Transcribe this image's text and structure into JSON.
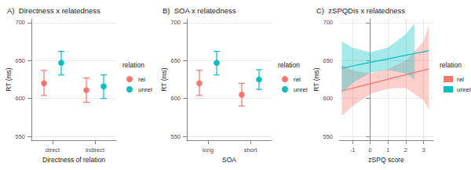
{
  "chart_data": [
    {
      "type": "point",
      "tag": "A)",
      "title": "Directness x relatedness",
      "x_label": "Directness of relation",
      "y_label": "RT (ms)",
      "categories": [
        "direct",
        "indirect"
      ],
      "legend_title": "relation",
      "legend": "right",
      "ylim": [
        545,
        705
      ],
      "yticks": [
        550,
        600,
        650,
        700
      ],
      "grid": true,
      "series": [
        {
          "name": "rel",
          "color": "#F8766D",
          "values": [
            620,
            611
          ],
          "lower": [
            604,
            595
          ],
          "upper": [
            637,
            627
          ]
        },
        {
          "name": "unrel",
          "color": "#00BFC4",
          "values": [
            647,
            616
          ],
          "lower": [
            631,
            600
          ],
          "upper": [
            662,
            631
          ]
        }
      ]
    },
    {
      "type": "point",
      "tag": "B)",
      "title": "SOA x relatedness",
      "x_label": "SOA",
      "y_label": "RT (ms)",
      "categories": [
        "long",
        "short"
      ],
      "legend_title": "relation",
      "legend": "right",
      "ylim": [
        545,
        705
      ],
      "yticks": [
        550,
        600,
        650,
        700
      ],
      "grid": true,
      "series": [
        {
          "name": "rel",
          "color": "#F8766D",
          "values": [
            620,
            605
          ],
          "lower": [
            604,
            590
          ],
          "upper": [
            637,
            620
          ]
        },
        {
          "name": "unrel",
          "color": "#00BFC4",
          "values": [
            647,
            625
          ],
          "lower": [
            631,
            612
          ],
          "upper": [
            662,
            638
          ]
        }
      ]
    },
    {
      "type": "line",
      "tag": "C)",
      "title": "zSPQDis x relatedness",
      "x_label": "zSPQ score",
      "y_label": "RT (ms)",
      "legend_title": "relation",
      "legend": "right",
      "xlim": [
        -1.75,
        3.55
      ],
      "xticks": [
        -1,
        0,
        1,
        2,
        3
      ],
      "ylim": [
        545,
        705
      ],
      "yticks": [
        550,
        600,
        650,
        700
      ],
      "grid": true,
      "series": [
        {
          "name": "rel",
          "color": "#F8766D",
          "x": [
            -1.6,
            -1,
            0,
            1,
            2,
            3,
            3.3
          ],
          "values": [
            610,
            613.6,
            619.5,
            625.4,
            631.3,
            637.2,
            639
          ],
          "lower": [
            577,
            590,
            606,
            613,
            614,
            598,
            585
          ],
          "upper": [
            644,
            637,
            633,
            639,
            650,
            675,
            697
          ]
        },
        {
          "name": "unrel",
          "color": "#00BFC4",
          "x": [
            -1.6,
            -1,
            0,
            1,
            2,
            2.5,
            3,
            3.3
          ],
          "values": [
            640,
            642.8,
            647.5,
            652.2,
            656.9,
            659.3,
            661.6,
            663
          ],
          "lower": [
            607,
            620,
            634,
            638,
            633,
            625,
            null,
            null
          ],
          "upper": [
            675,
            667,
            661,
            667,
            685,
            699,
            null,
            null
          ]
        }
      ]
    }
  ]
}
